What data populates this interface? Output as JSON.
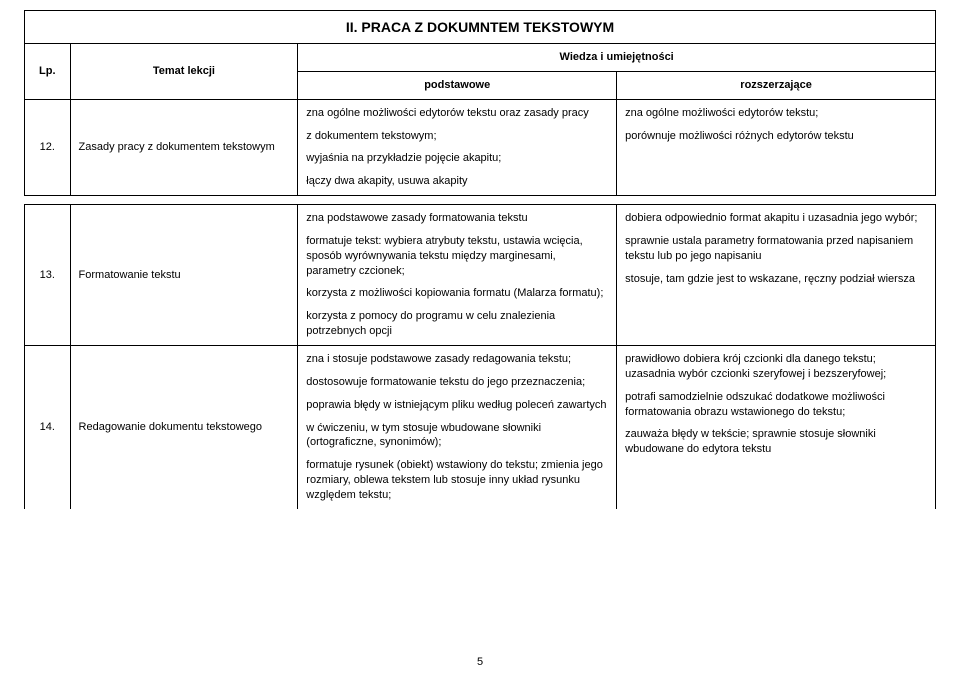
{
  "title": "II. PRACA Z DOKUMNTEM TEKSTOWYM",
  "header": {
    "lp": "Lp.",
    "topic": "Temat lekcji",
    "skills": "Wiedza i umiejętności",
    "basic": "podstawowe",
    "extended": "rozszerzające"
  },
  "rows": {
    "r12": {
      "lp": "12.",
      "topic": "Zasady pracy z dokumentem tekstowym",
      "basic": {
        "p1": "zna ogólne możliwości edytorów tekstu oraz zasady pracy",
        "p2": "z dokumentem tekstowym;",
        "p3": "wyjaśnia na przykładzie pojęcie akapitu;",
        "p4": "łączy dwa akapity, usuwa akapity"
      },
      "ext": {
        "p1": "zna ogólne możliwości edytorów tekstu;",
        "p2": "porównuje możliwości różnych edytorów tekstu"
      }
    },
    "r13": {
      "lp": "13.",
      "topic": "Formatowanie tekstu",
      "basic": {
        "p1": "zna podstawowe zasady formatowania tekstu",
        "p2": "formatuje tekst: wybiera atrybuty tekstu, ustawia wcięcia, sposób wyrównywania tekstu między marginesami, parametry czcionek;",
        "p3": "korzysta z możliwości kopiowania formatu (Malarza formatu);",
        "p4": "korzysta z pomocy do programu w celu znalezienia potrzebnych opcji"
      },
      "ext": {
        "p1": "dobiera odpowiednio format akapitu i uzasadnia jego wybór;",
        "p2": "sprawnie ustala parametry formatowania przed napisaniem tekstu lub po jego napisaniu",
        "p3": "stosuje, tam gdzie jest to wskazane, ręczny podział wiersza"
      }
    },
    "r14": {
      "lp": "14.",
      "topic": "Redagowanie dokumentu tekstowego",
      "basic": {
        "p1": "zna i stosuje podstawowe zasady redagowania tekstu;",
        "p2": "dostosowuje formatowanie tekstu do jego przeznaczenia;",
        "p3": "poprawia błędy w istniejącym pliku według poleceń zawartych",
        "p4": "w ćwiczeniu, w tym stosuje wbudowane słowniki (ortograficzne, synonimów);",
        "p5": "formatuje rysunek (obiekt) wstawiony do tekstu; zmienia jego rozmiary, oblewa tekstem lub stosuje inny układ rysunku względem tekstu;"
      },
      "ext": {
        "p1": "prawidłowo dobiera krój czcionki dla danego tekstu; uzasadnia wybór czcionki szeryfowej i bezszeryfowej;",
        "p2": "potrafi samodzielnie odszukać dodatkowe możliwości formatowania obrazu wstawionego do tekstu;",
        "p3": "zauważa błędy w tekście; sprawnie stosuje słowniki wbudowane do edytora tekstu"
      }
    }
  },
  "pageNumber": "5"
}
